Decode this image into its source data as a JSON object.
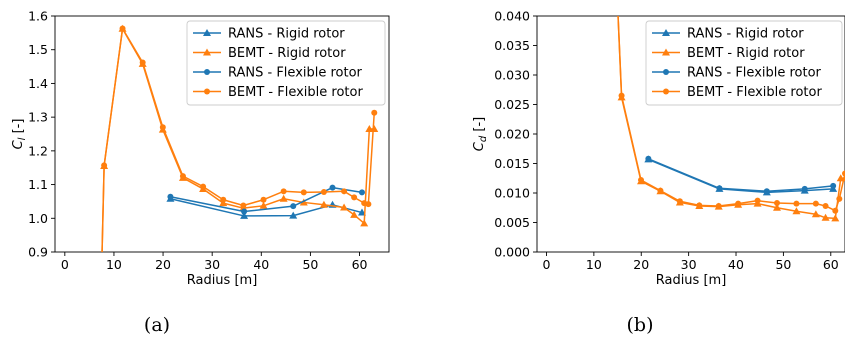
{
  "colors": {
    "rans": "#1f77b4",
    "bemt": "#ff7f0e"
  },
  "chart_data": [
    {
      "type": "line",
      "caption": "(a)",
      "xlabel": "Radius [m]",
      "ylabel_main": "C",
      "ylabel_sub": "l",
      "ylabel_unit": " [-]",
      "xlim": [
        -2,
        66
      ],
      "ylim": [
        0.9,
        1.6
      ],
      "xticks": [
        0,
        10,
        20,
        30,
        40,
        50,
        60
      ],
      "yticks": [
        0.9,
        1.0,
        1.1,
        1.2,
        1.3,
        1.4,
        1.5,
        1.6
      ],
      "ytick_labels": [
        "0.9",
        "1.0",
        "1.1",
        "1.2",
        "1.3",
        "1.4",
        "1.5",
        "1.6"
      ],
      "legend_position": "top-right",
      "grid": false,
      "series": [
        {
          "name": "RANS - Rigid rotor",
          "color": "rans",
          "marker": "triangle",
          "x": [
            21.5,
            36.5,
            46.5,
            54.5,
            60.5
          ],
          "y": [
            1.058,
            1.007,
            1.008,
            1.04,
            1.017
          ]
        },
        {
          "name": "BEMT - Rigid rotor",
          "color": "bemt",
          "marker": "triangle",
          "x": [
            7.5,
            8.0,
            11.75,
            15.85,
            19.95,
            24.05,
            28.15,
            32.25,
            36.35,
            40.45,
            44.55,
            48.65,
            52.75,
            56.85,
            58.9,
            60.95,
            62.0,
            63.0
          ],
          "y": [
            0.85,
            1.155,
            1.562,
            1.458,
            1.263,
            1.12,
            1.087,
            1.045,
            1.03,
            1.037,
            1.058,
            1.047,
            1.04,
            1.032,
            1.01,
            0.985,
            1.265,
            1.265
          ]
        },
        {
          "name": "RANS - Flexible rotor",
          "color": "rans",
          "marker": "circle",
          "x": [
            21.5,
            36.5,
            46.5,
            54.5,
            60.5
          ],
          "y": [
            1.064,
            1.02,
            1.036,
            1.091,
            1.077
          ]
        },
        {
          "name": "BEMT - Flexible rotor",
          "color": "bemt",
          "marker": "circle",
          "x": [
            7.5,
            8.0,
            11.75,
            15.85,
            19.95,
            24.05,
            28.15,
            32.25,
            36.35,
            40.45,
            44.55,
            48.65,
            52.75,
            56.85,
            58.9,
            60.95,
            61.8,
            63.0
          ],
          "y": [
            0.85,
            1.157,
            1.563,
            1.462,
            1.27,
            1.125,
            1.094,
            1.055,
            1.038,
            1.055,
            1.08,
            1.077,
            1.078,
            1.08,
            1.062,
            1.045,
            1.042,
            1.313
          ]
        }
      ]
    },
    {
      "type": "line",
      "caption": "(b)",
      "xlabel": "Radius [m]",
      "ylabel_main": "C",
      "ylabel_sub": "d",
      "ylabel_unit": " [-]",
      "xlim": [
        -2,
        63
      ],
      "ylim": [
        0.0,
        0.04
      ],
      "xticks": [
        0,
        10,
        20,
        30,
        40,
        50,
        60
      ],
      "yticks": [
        0.0,
        0.005,
        0.01,
        0.015,
        0.02,
        0.025,
        0.03,
        0.035,
        0.04
      ],
      "ytick_labels": [
        "0.000",
        "0.005",
        "0.010",
        "0.015",
        "0.020",
        "0.025",
        "0.030",
        "0.035",
        "0.040"
      ],
      "legend_position": "top-right",
      "grid": false,
      "series": [
        {
          "name": "RANS - Rigid rotor",
          "color": "rans",
          "marker": "triangle",
          "x": [
            21.5,
            36.5,
            46.5,
            54.5,
            60.5
          ],
          "y": [
            0.0157,
            0.0107,
            0.0101,
            0.0104,
            0.0107
          ]
        },
        {
          "name": "BEMT - Rigid rotor",
          "color": "bemt",
          "marker": "triangle",
          "x": [
            15.0,
            15.85,
            19.95,
            24.05,
            28.15,
            32.25,
            36.35,
            40.45,
            44.55,
            48.65,
            52.75,
            56.85,
            58.9,
            60.95,
            62.1,
            63.0
          ],
          "y": [
            0.042,
            0.0262,
            0.012,
            0.0103,
            0.0084,
            0.0078,
            0.0077,
            0.008,
            0.0082,
            0.0075,
            0.0069,
            0.0064,
            0.0058,
            0.0057,
            0.0125,
            0.0125
          ]
        },
        {
          "name": "RANS - Flexible rotor",
          "color": "rans",
          "marker": "circle",
          "x": [
            21.5,
            36.5,
            46.5,
            54.5,
            60.5
          ],
          "y": [
            0.0158,
            0.0108,
            0.0103,
            0.0107,
            0.0112
          ]
        },
        {
          "name": "BEMT - Flexible rotor",
          "color": "bemt",
          "marker": "circle",
          "x": [
            15.0,
            15.85,
            19.95,
            24.05,
            28.15,
            32.25,
            36.35,
            40.45,
            44.55,
            48.65,
            52.75,
            56.85,
            58.9,
            60.95,
            61.8,
            63.0
          ],
          "y": [
            0.042,
            0.0265,
            0.0122,
            0.0104,
            0.0086,
            0.0079,
            0.0078,
            0.0082,
            0.0087,
            0.0083,
            0.0082,
            0.0082,
            0.0078,
            0.007,
            0.009,
            0.0133
          ]
        }
      ]
    }
  ]
}
